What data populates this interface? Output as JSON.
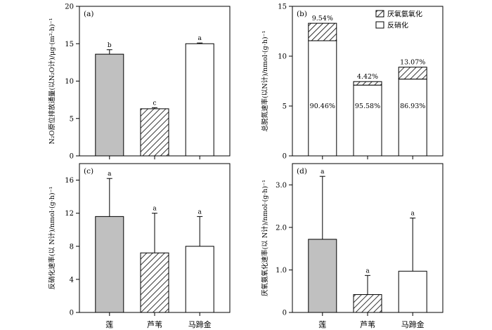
{
  "colors": {
    "lotus": "#c0c0c0",
    "reed": "hatch",
    "water_chestnut": "#ffffff",
    "axis": "#000000"
  },
  "chart_data": [
    {
      "panel": "(a)",
      "type": "bar",
      "ylabel": "N₂O原位排放通量(以N₂O计)/μg·(m²·h)⁻¹",
      "categories": [
        "莲",
        "芦苇",
        "马蹄金"
      ],
      "values": [
        13.6,
        6.3,
        15.0
      ],
      "errors": [
        0.6,
        0.15,
        0.1
      ],
      "sig": [
        "b",
        "c",
        "a"
      ],
      "ylim": [
        0,
        20
      ],
      "yticks": [
        "0",
        "5",
        "10",
        "15",
        "20"
      ],
      "yticks_values": [
        0,
        5,
        10,
        15,
        20
      ],
      "show_categories": false
    },
    {
      "panel": "(b)",
      "type": "bar",
      "stacked": true,
      "ylabel": "总脱氮速率(以N计)/nmol·(g·h)⁻¹",
      "categories": [
        "莲",
        "芦苇",
        "马蹄金"
      ],
      "series": [
        {
          "name": "反硝化",
          "values": [
            11.55,
            7.1,
            7.7
          ],
          "pct_labels": [
            "90.46%",
            "95.58%",
            "86.93%"
          ]
        },
        {
          "name": "厌氧氨氧化",
          "values": [
            1.75,
            0.35,
            1.2
          ],
          "pct_labels": [
            "9.54%",
            "4.42%",
            "13.07%"
          ]
        }
      ],
      "ylim": [
        0,
        15
      ],
      "yticks": [
        "0",
        "5",
        "10",
        "15"
      ],
      "yticks_values": [
        0,
        5,
        10,
        15
      ],
      "legend": [
        "厌氧氨氧化",
        "反硝化"
      ],
      "legend_position": "top-right",
      "show_categories": false
    },
    {
      "panel": "(c)",
      "type": "bar",
      "ylabel": "反硝化速率(以 N计)/nmol·(g·h)⁻¹",
      "categories": [
        "莲",
        "芦苇",
        "马蹄金"
      ],
      "values": [
        11.6,
        7.2,
        8.0
      ],
      "errors": [
        4.6,
        4.8,
        3.6
      ],
      "sig": [
        "a",
        "a",
        "a"
      ],
      "ylim": [
        0,
        18
      ],
      "yticks": [
        "0",
        "4",
        "8",
        "12",
        "16"
      ],
      "yticks_values": [
        0,
        4,
        8,
        12,
        16
      ],
      "show_categories": true
    },
    {
      "panel": "(d)",
      "type": "bar",
      "ylabel": "厌氧氨氧化速率(以 N计)/nmol·(g·h)⁻¹",
      "categories": [
        "莲",
        "芦苇",
        "马蹄金"
      ],
      "values": [
        1.72,
        0.42,
        0.97
      ],
      "errors": [
        1.48,
        0.45,
        1.25
      ],
      "sig": [
        "a",
        "a",
        "a"
      ],
      "ylim": [
        0,
        3.5
      ],
      "yticks": [
        "0",
        "1.0",
        "2.0",
        "3.0"
      ],
      "yticks_values": [
        0,
        1,
        2,
        3
      ],
      "show_categories": true
    }
  ]
}
